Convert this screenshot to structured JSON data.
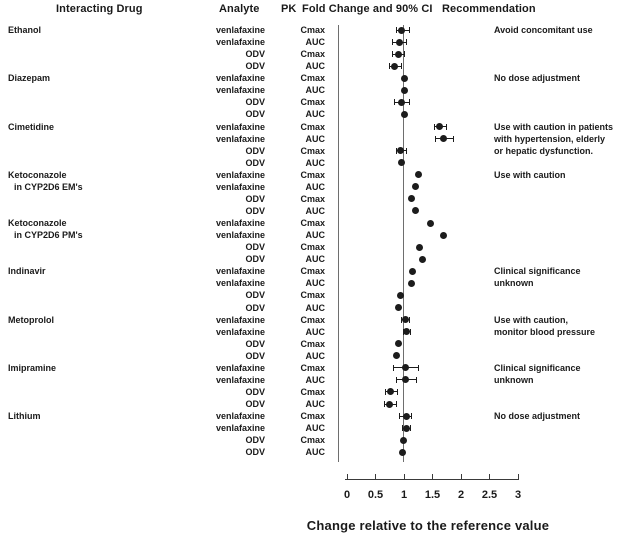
{
  "columns": {
    "interacting_drug": "Interacting Drug",
    "analyte": "Analyte",
    "pk": "PK",
    "fold_change_ci": "Fold Change and 90% CI",
    "recommendation": "Recommendation"
  },
  "chart_data": {
    "type": "scatter",
    "subtype": "forest-plot-dots-with-90pct-CI",
    "title": "PK Fold Change and 90% CI",
    "xlabel": "Change relative to the reference value",
    "xlim": [
      0,
      3
    ],
    "x_tick_values": [
      0,
      0.5,
      1,
      1.5,
      2,
      2.5,
      3
    ],
    "x_tick_labels": [
      "0",
      "0.5",
      "1",
      "1.5",
      "2",
      "2.5",
      "3"
    ],
    "reference_line": 1,
    "grid": false,
    "marker_color": "#1c1c1c",
    "groups": [
      {
        "drug": [
          "Ethanol"
        ],
        "recommendation": [
          "Avoid concomitant use"
        ],
        "rows": [
          {
            "analyte": "venlafaxine",
            "pk": "Cmax",
            "value": 0.96,
            "lo": 0.86,
            "hi": 1.1
          },
          {
            "analyte": "venlafaxine",
            "pk": "AUC",
            "value": 0.92,
            "lo": 0.8,
            "hi": 1.05
          },
          {
            "analyte": "ODV",
            "pk": "Cmax",
            "value": 0.9,
            "lo": 0.8,
            "hi": 1.01
          },
          {
            "analyte": "ODV",
            "pk": "AUC",
            "value": 0.84,
            "lo": 0.74,
            "hi": 0.96
          }
        ]
      },
      {
        "drug": [
          "Diazepam"
        ],
        "recommendation": [
          "No dose adjustment"
        ],
        "rows": [
          {
            "analyte": "venlafaxine",
            "pk": "Cmax",
            "value": 1.0,
            "lo": null,
            "hi": null
          },
          {
            "analyte": "venlafaxine",
            "pk": "AUC",
            "value": 1.0,
            "lo": null,
            "hi": null
          },
          {
            "analyte": "ODV",
            "pk": "Cmax",
            "value": 0.96,
            "lo": 0.84,
            "hi": 1.09
          },
          {
            "analyte": "ODV",
            "pk": "AUC",
            "value": 1.0,
            "lo": null,
            "hi": null
          }
        ]
      },
      {
        "drug": [
          "Cimetidine"
        ],
        "recommendation": [
          "Use with caution in patients",
          "with hypertension, elderly",
          "or hepatic dysfunction."
        ],
        "rows": [
          {
            "analyte": "venlafaxine",
            "pk": "Cmax",
            "value": 1.63,
            "lo": 1.54,
            "hi": 1.75
          },
          {
            "analyte": "venlafaxine",
            "pk": "AUC",
            "value": 1.7,
            "lo": 1.56,
            "hi": 1.87
          },
          {
            "analyte": "ODV",
            "pk": "Cmax",
            "value": 0.94,
            "lo": 0.86,
            "hi": 1.05
          },
          {
            "analyte": "ODV",
            "pk": "AUC",
            "value": 0.96,
            "lo": null,
            "hi": null
          }
        ]
      },
      {
        "drug": [
          "Ketoconazole",
          "in CYP2D6 EM's"
        ],
        "recommendation": [
          "Use with caution"
        ],
        "rows": [
          {
            "analyte": "venlafaxine",
            "pk": "Cmax",
            "value": 1.25,
            "lo": null,
            "hi": null
          },
          {
            "analyte": "venlafaxine",
            "pk": "AUC",
            "value": 1.21,
            "lo": null,
            "hi": null
          },
          {
            "analyte": "ODV",
            "pk": "Cmax",
            "value": 1.14,
            "lo": null,
            "hi": null
          },
          {
            "analyte": "ODV",
            "pk": "AUC",
            "value": 1.2,
            "lo": null,
            "hi": null
          }
        ]
      },
      {
        "drug": [
          "Ketoconazole",
          "in CYP2D6 PM's"
        ],
        "recommendation": [],
        "rows": [
          {
            "analyte": "venlafaxine",
            "pk": "Cmax",
            "value": 1.47,
            "lo": null,
            "hi": null
          },
          {
            "analyte": "venlafaxine",
            "pk": "AUC",
            "value": 1.69,
            "lo": null,
            "hi": null
          },
          {
            "analyte": "ODV",
            "pk": "Cmax",
            "value": 1.27,
            "lo": null,
            "hi": null
          },
          {
            "analyte": "ODV",
            "pk": "AUC",
            "value": 1.32,
            "lo": null,
            "hi": null
          }
        ]
      },
      {
        "drug": [
          "Indinavir"
        ],
        "recommendation": [
          "Clinical significance",
          "unknown"
        ],
        "rows": [
          {
            "analyte": "venlafaxine",
            "pk": "Cmax",
            "value": 1.15,
            "lo": null,
            "hi": null
          },
          {
            "analyte": "venlafaxine",
            "pk": "AUC",
            "value": 1.13,
            "lo": null,
            "hi": null
          },
          {
            "analyte": "ODV",
            "pk": "Cmax",
            "value": 0.93,
            "lo": null,
            "hi": null
          },
          {
            "analyte": "ODV",
            "pk": "AUC",
            "value": 0.91,
            "lo": null,
            "hi": null
          }
        ]
      },
      {
        "drug": [
          "Metoprolol"
        ],
        "recommendation": [
          "Use with caution,",
          "monitor blood pressure"
        ],
        "rows": [
          {
            "analyte": "venlafaxine",
            "pk": "Cmax",
            "value": 1.02,
            "lo": 0.96,
            "hi": 1.09
          },
          {
            "analyte": "venlafaxine",
            "pk": "AUC",
            "value": 1.05,
            "lo": 0.99,
            "hi": 1.11
          },
          {
            "analyte": "ODV",
            "pk": "Cmax",
            "value": 0.91,
            "lo": null,
            "hi": null
          },
          {
            "analyte": "ODV",
            "pk": "AUC",
            "value": 0.87,
            "lo": null,
            "hi": null
          }
        ]
      },
      {
        "drug": [
          "Imipramine"
        ],
        "recommendation": [
          "Clinical significance",
          "unknown"
        ],
        "rows": [
          {
            "analyte": "venlafaxine",
            "pk": "Cmax",
            "value": 1.02,
            "lo": 0.81,
            "hi": 1.25
          },
          {
            "analyte": "venlafaxine",
            "pk": "AUC",
            "value": 1.02,
            "lo": 0.86,
            "hi": 1.22
          },
          {
            "analyte": "ODV",
            "pk": "Cmax",
            "value": 0.77,
            "lo": 0.67,
            "hi": 0.88
          },
          {
            "analyte": "ODV",
            "pk": "AUC",
            "value": 0.75,
            "lo": 0.65,
            "hi": 0.87
          }
        ]
      },
      {
        "drug": [
          "Lithium"
        ],
        "recommendation": [
          "No dose adjustment"
        ],
        "rows": [
          {
            "analyte": "venlafaxine",
            "pk": "Cmax",
            "value": 1.04,
            "lo": 0.92,
            "hi": 1.14
          },
          {
            "analyte": "venlafaxine",
            "pk": "AUC",
            "value": 1.05,
            "lo": 0.97,
            "hi": 1.12
          },
          {
            "analyte": "ODV",
            "pk": "Cmax",
            "value": 0.99,
            "lo": null,
            "hi": null
          },
          {
            "analyte": "ODV",
            "pk": "AUC",
            "value": 0.98,
            "lo": null,
            "hi": null
          }
        ]
      }
    ]
  }
}
